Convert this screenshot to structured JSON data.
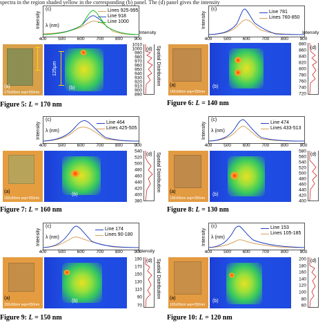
{
  "intro_text": "spectra in the region shaded yellow in the corresponding (b) panel. The (d) panel gives the intensity",
  "labels": {
    "intensity": "Intensity",
    "lambda": "λ (nm)",
    "spatial": "Spatial Distribution",
    "a": "(a)",
    "b": "(b)",
    "c": "(c)",
    "d": "(d)",
    "scale": "125μm"
  },
  "x_ticks": [
    "400",
    "500",
    "600",
    "700",
    "800",
    "900"
  ],
  "side_ticks": [
    "0",
    "0",
    "0",
    "0",
    "0"
  ],
  "panels": [
    {
      "id": "fig5",
      "caption_prefix": "Figure 5:",
      "caption_var": "L",
      "caption_value": "= 170 nm",
      "legend": [
        "Lines 925-995",
        "Line 918",
        "Line 1000"
      ],
      "legend_colors": [
        "#d8a25a",
        "#3050c0",
        "#20c020"
      ],
      "photo_label": "170x50nm sep=250nm",
      "y_ticks": [
        "1010",
        "1000",
        "990",
        "980",
        "970",
        "960",
        "950",
        "940",
        "930",
        "920",
        "910",
        "900",
        "890"
      ]
    },
    {
      "id": "fig6",
      "caption_prefix": "Figure 6:",
      "caption_var": "L",
      "caption_value": "= 140 nm",
      "legend": [
        "Line 781",
        "Lines 760-850"
      ],
      "legend_colors": [
        "#2040c0",
        "#d8a25a"
      ],
      "photo_label": "140x50nm sep=250nm",
      "y_ticks": [
        "880",
        "860",
        "840",
        "820",
        "800",
        "780",
        "760",
        "740",
        "720"
      ]
    },
    {
      "id": "fig7",
      "caption_prefix": "Figure 7:",
      "caption_var": "L",
      "caption_value": "= 160 nm",
      "legend": [
        "Line 464",
        "Lines 425-505"
      ],
      "legend_colors": [
        "#2040c0",
        "#d8a25a"
      ],
      "photo_label": "160x50nm sep=250nm",
      "y_ticks": [
        "540",
        "520",
        "500",
        "480",
        "460",
        "440",
        "420",
        "400",
        "380"
      ]
    },
    {
      "id": "fig8",
      "caption_prefix": "Figure 8:",
      "caption_var": "L",
      "caption_value": "= 130 nm",
      "legend": [
        "Line 474",
        "Lines 433-513"
      ],
      "legend_colors": [
        "#2040c0",
        "#d8a25a"
      ],
      "photo_label": "130x50nm sep=250nm",
      "y_ticks": [
        "580",
        "560",
        "540",
        "520",
        "500",
        "480",
        "460",
        "440",
        "420",
        "400"
      ]
    },
    {
      "id": "fig9",
      "caption_prefix": "Figure 9:",
      "caption_var": "L",
      "caption_value": "= 150 nm",
      "legend": [
        "Line 174",
        "Lines 90-180"
      ],
      "legend_colors": [
        "#2040c0",
        "#d8a25a"
      ],
      "photo_label": "150x50nm sep=250nm",
      "y_ticks": [
        "190",
        "170",
        "150",
        "130",
        "110",
        "90",
        "70"
      ]
    },
    {
      "id": "fig10",
      "caption_prefix": "Figure 10:",
      "caption_var": "L",
      "caption_value": "= 120 nm",
      "legend": [
        "Line 153",
        "Lines 105-185"
      ],
      "legend_colors": [
        "#2040c0",
        "#d8a25a"
      ],
      "photo_label": "120x50nm sep=250nm",
      "y_ticks": [
        "200",
        "180",
        "160",
        "140",
        "120",
        "100",
        "80",
        "60"
      ]
    }
  ]
}
